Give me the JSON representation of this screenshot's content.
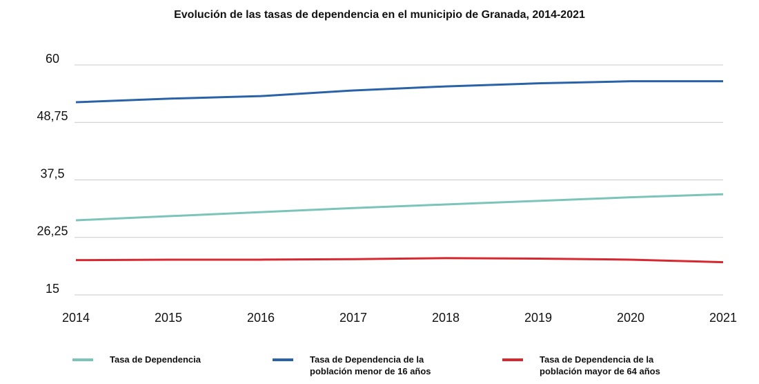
{
  "chart_data": {
    "type": "line",
    "title": "Evolución de las tasas de dependencia en el municipio de Granada, 2014-2021",
    "x": [
      2014,
      2015,
      2016,
      2017,
      2018,
      2019,
      2020,
      2021
    ],
    "xlim": [
      2014,
      2021
    ],
    "xticks": [
      2014,
      2015,
      2016,
      2017,
      2018,
      2019,
      2020,
      2021
    ],
    "ylim": [
      15,
      60
    ],
    "yticks": [
      15,
      {
        "value": 26.25,
        "label": "26,25"
      },
      {
        "value": 37.5,
        "label": "37,5"
      },
      {
        "value": 48.75,
        "label": "48,75"
      },
      60
    ],
    "grid": true,
    "legend": "bottom",
    "series": [
      {
        "name": "Tasa de Dependencia",
        "color": "#7cc4b9",
        "values": [
          29.6,
          30.4,
          31.2,
          32.0,
          32.7,
          33.4,
          34.1,
          34.7
        ]
      },
      {
        "name": "Tasa de Dependencia de la población menor de 16 años",
        "color": "#2a62a8",
        "values": [
          52.7,
          53.4,
          53.9,
          55.0,
          55.8,
          56.4,
          56.8,
          56.8
        ]
      },
      {
        "name": "Tasa de Dependencia de la población mayor de 64 años",
        "color": "#d7282f",
        "values": [
          21.8,
          21.9,
          21.9,
          22.0,
          22.2,
          22.1,
          21.9,
          21.4
        ]
      }
    ]
  }
}
